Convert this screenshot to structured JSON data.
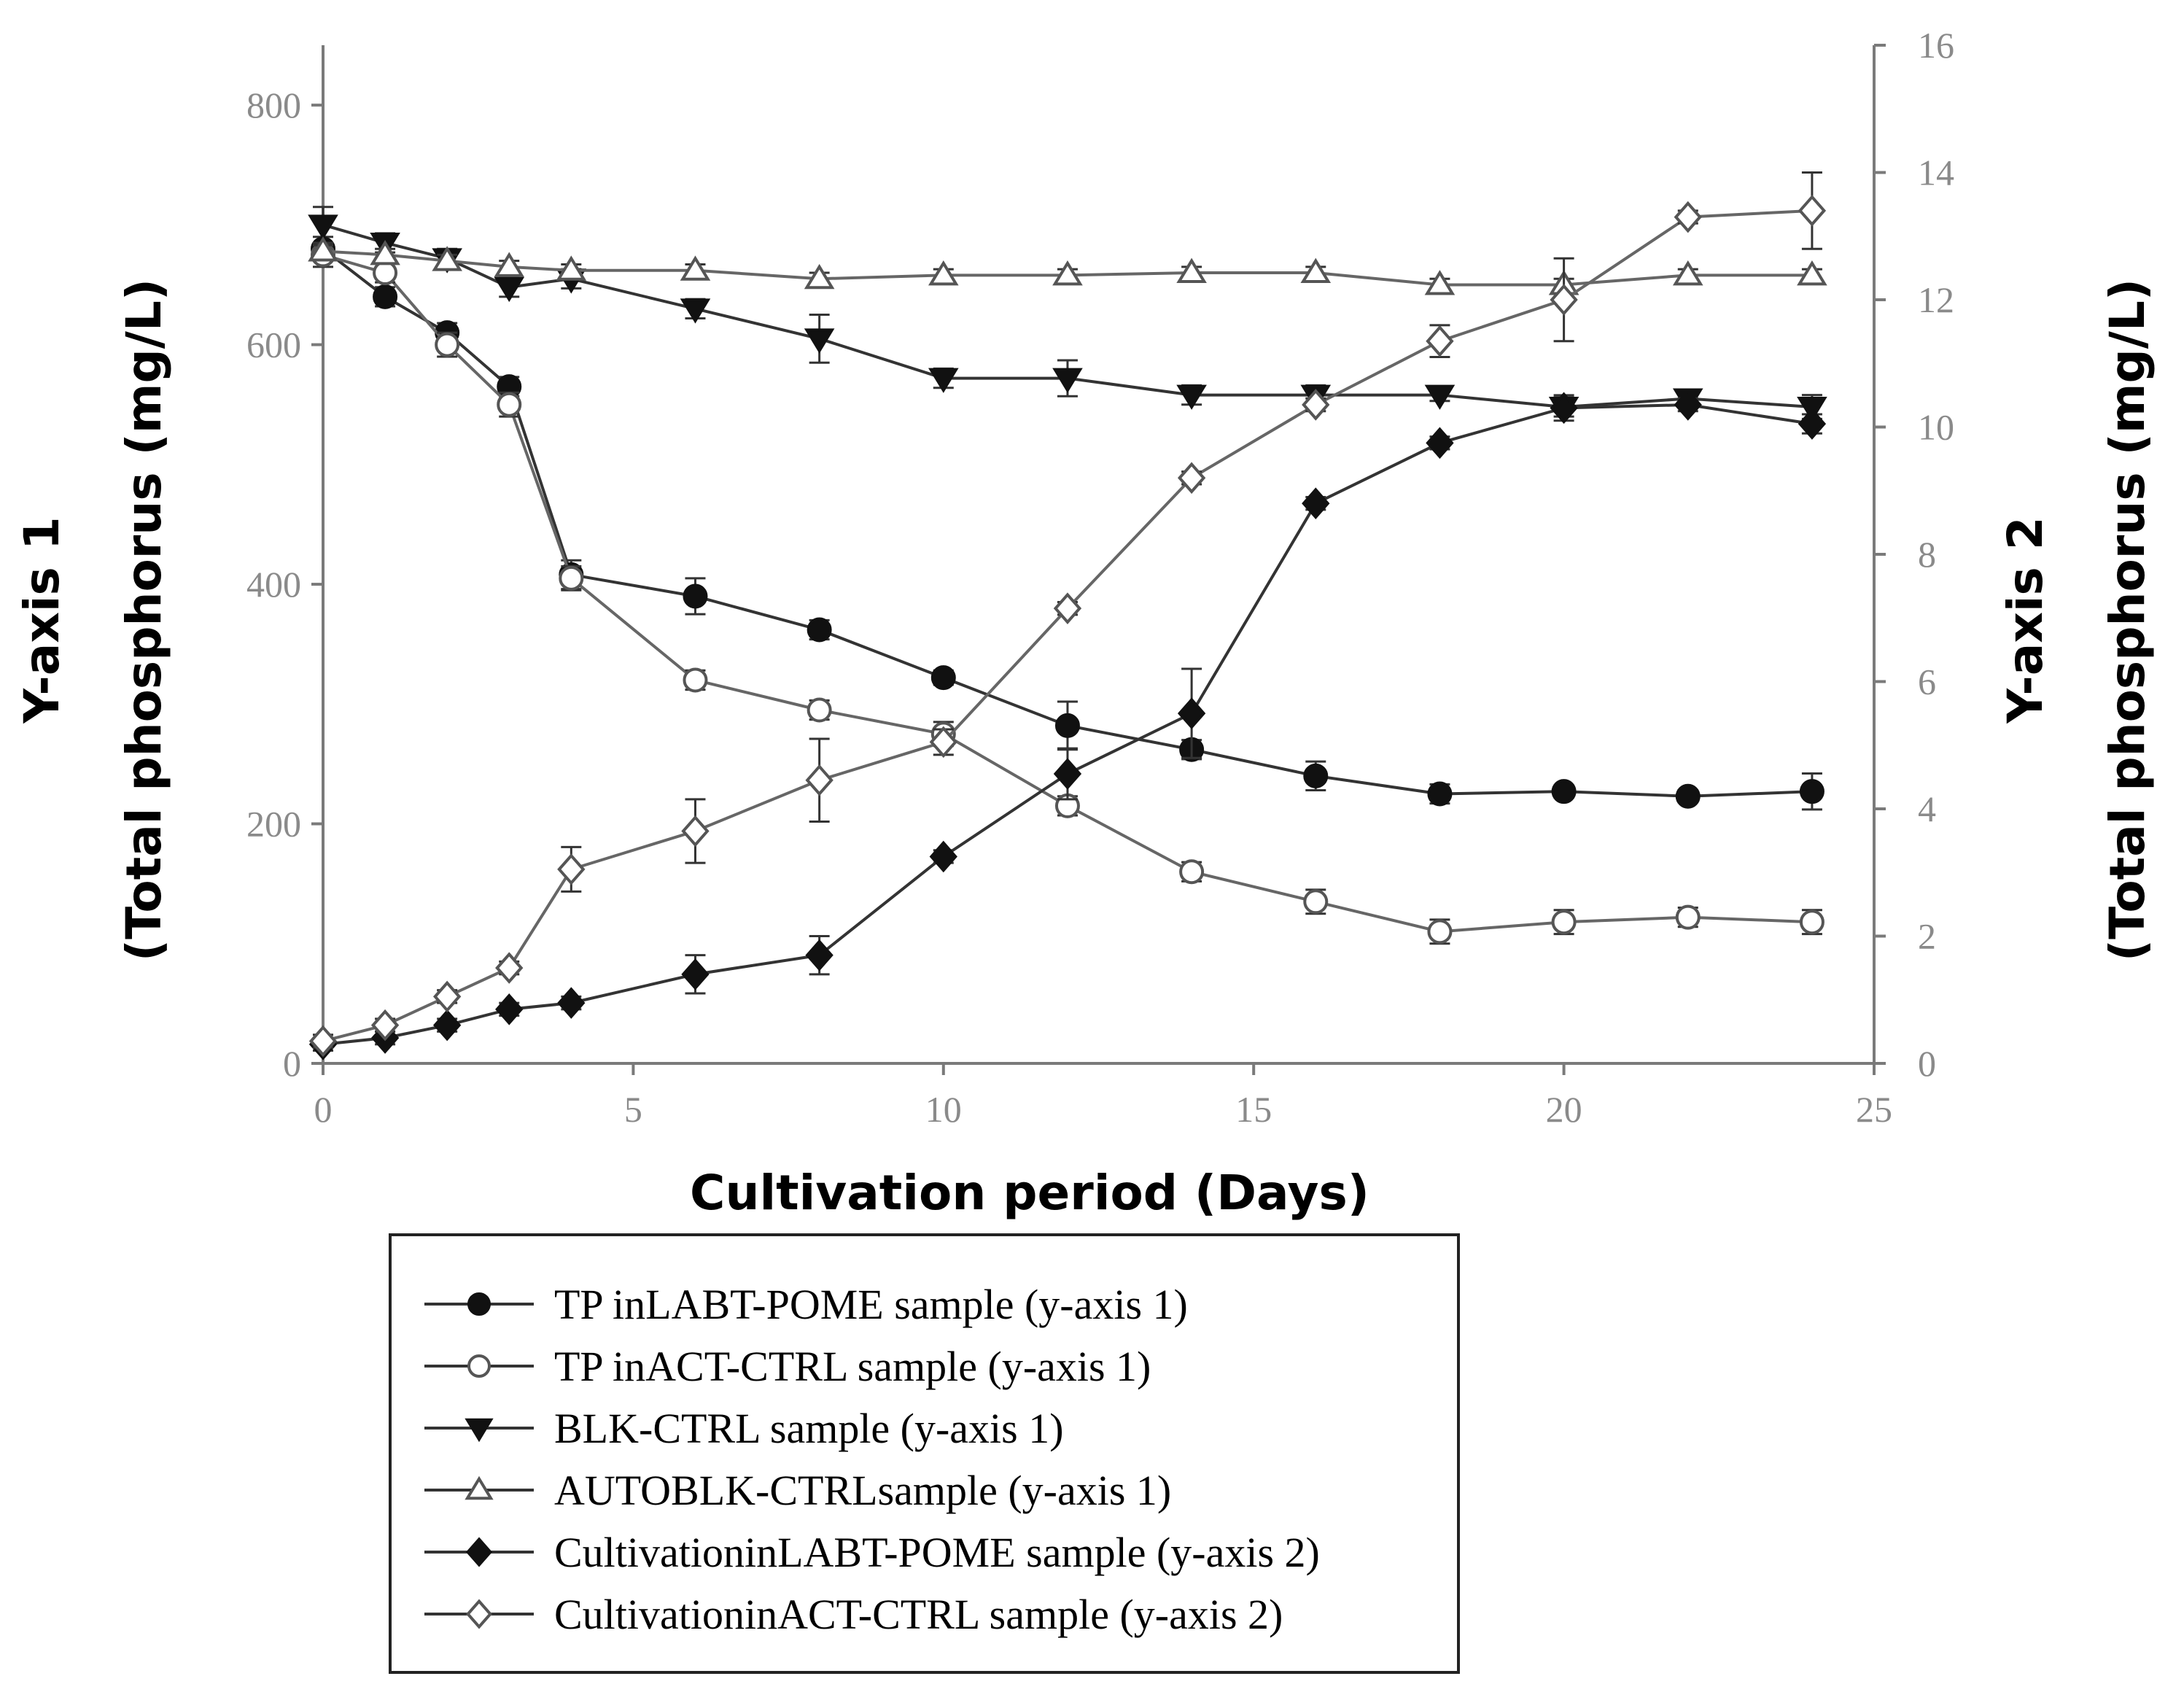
{
  "chart_data": {
    "type": "line",
    "x_label": "Cultivation period (Days)",
    "y1_label_line1": "Y-axis 1",
    "y1_label_line2": "(Total phosphorus (mg/L)",
    "y2_label_line1": "Y-axis 2",
    "y2_label_line2": "(Total phosphorus (mg/L)",
    "xlim": [
      0,
      25
    ],
    "y1lim": [
      0,
      850
    ],
    "y2lim": [
      0,
      16
    ],
    "x_ticks": [
      0,
      5,
      10,
      15,
      20,
      25
    ],
    "y1_ticks": [
      0,
      200,
      400,
      600,
      800
    ],
    "y2_ticks": [
      0,
      2,
      4,
      6,
      8,
      10,
      12,
      14,
      16
    ],
    "legend_position": "below",
    "series": [
      {
        "name": "TP inLABT-POME sample (y-axis 1)",
        "axis": "y1",
        "marker": "circle-filled",
        "x": [
          0,
          1,
          2,
          3,
          4,
          6,
          8,
          10,
          12,
          14,
          16,
          18,
          20,
          22,
          24
        ],
        "y": [
          680,
          640,
          610,
          565,
          408,
          390,
          362,
          322,
          282,
          262,
          240,
          225,
          227,
          223,
          227
        ],
        "err": [
          10,
          8,
          8,
          8,
          12,
          15,
          8,
          6,
          20,
          8,
          12,
          8,
          5,
          5,
          15
        ]
      },
      {
        "name": "TP inACT-CTRL sample (y-axis 1)",
        "axis": "y1",
        "marker": "circle-open",
        "x": [
          0,
          1,
          2,
          3,
          4,
          6,
          8,
          10,
          12,
          14,
          16,
          18,
          20,
          22,
          24
        ],
        "y": [
          675,
          660,
          600,
          550,
          405,
          320,
          295,
          275,
          215,
          160,
          135,
          110,
          118,
          122,
          118
        ],
        "err": [
          10,
          8,
          10,
          10,
          10,
          8,
          8,
          10,
          8,
          8,
          10,
          10,
          10,
          8,
          10
        ]
      },
      {
        "name": "BLK-CTRL sample (y-axis 1)",
        "axis": "y1",
        "marker": "triangle-down-filled",
        "x": [
          0,
          1,
          2,
          3,
          4,
          6,
          8,
          10,
          12,
          14,
          16,
          18,
          20,
          22,
          24
        ],
        "y": [
          700,
          685,
          672,
          648,
          655,
          630,
          605,
          572,
          572,
          558,
          558,
          558,
          548,
          555,
          548
        ],
        "err": [
          15,
          8,
          8,
          8,
          8,
          8,
          20,
          8,
          15,
          8,
          8,
          5,
          8,
          5,
          10
        ]
      },
      {
        "name": "AUTOBLK-CTRLsample (y-axis 1)",
        "axis": "y1",
        "marker": "triangle-up-open",
        "x": [
          0,
          1,
          2,
          3,
          4,
          6,
          8,
          10,
          12,
          14,
          16,
          18,
          20,
          22,
          24
        ],
        "y": [
          678,
          675,
          670,
          665,
          662,
          662,
          655,
          658,
          658,
          660,
          660,
          650,
          650,
          658,
          658
        ],
        "err": [
          5,
          5,
          5,
          5,
          5,
          5,
          5,
          5,
          5,
          5,
          5,
          5,
          5,
          5,
          5
        ]
      },
      {
        "name": "CultivationinLABT-POME sample (y-axis 2)",
        "axis": "y2",
        "marker": "diamond-filled",
        "x": [
          0,
          1,
          2,
          3,
          4,
          6,
          8,
          10,
          12,
          14,
          16,
          18,
          20,
          22,
          24
        ],
        "y": [
          0.3,
          0.4,
          0.6,
          0.85,
          0.95,
          1.4,
          1.7,
          3.25,
          4.55,
          5.5,
          8.8,
          9.75,
          10.3,
          10.35,
          10.05
        ],
        "err": [
          0.1,
          0.1,
          0.1,
          0.1,
          0.1,
          0.3,
          0.3,
          0.1,
          0.4,
          0.7,
          0.1,
          0.1,
          0.2,
          0.1,
          0.15
        ]
      },
      {
        "name": "CultivationinACT-CTRL sample (y-axis 2)",
        "axis": "y2",
        "marker": "diamond-open",
        "x": [
          0,
          1,
          2,
          3,
          4,
          6,
          8,
          10,
          12,
          14,
          16,
          18,
          20,
          22,
          24
        ],
        "y": [
          0.35,
          0.6,
          1.05,
          1.5,
          3.05,
          3.65,
          4.45,
          5.05,
          7.15,
          9.2,
          10.35,
          11.35,
          12.0,
          13.3,
          13.4
        ],
        "err": [
          0.1,
          0.1,
          0.1,
          0.1,
          0.35,
          0.5,
          0.65,
          0.2,
          0.1,
          0.1,
          0.1,
          0.25,
          0.65,
          0.1,
          0.6
        ]
      }
    ]
  }
}
